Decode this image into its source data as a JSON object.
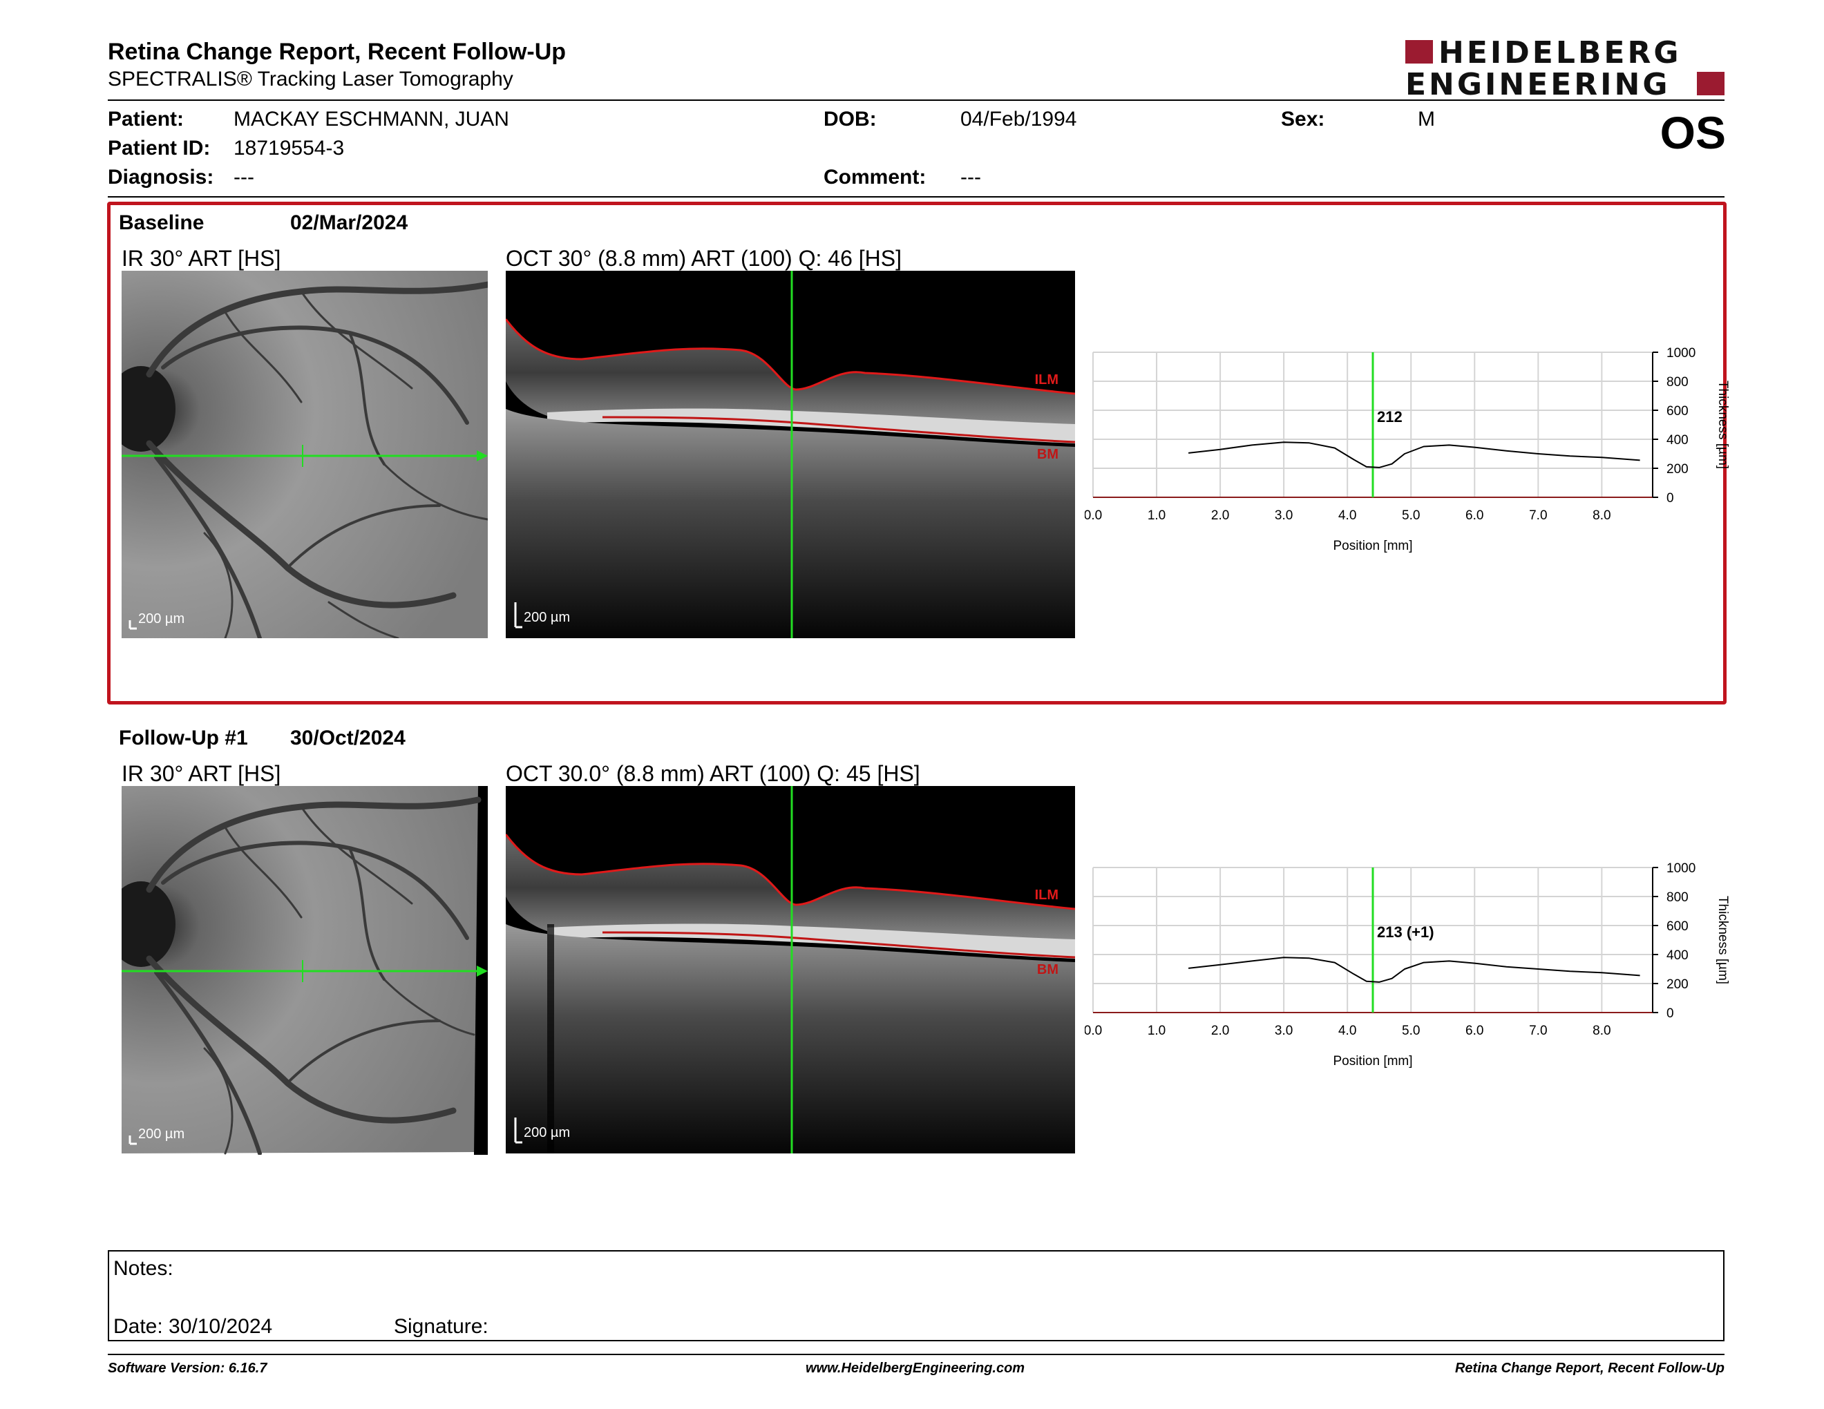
{
  "header": {
    "title": "Retina Change Report, Recent Follow-Up",
    "subtitle": "SPECTRALIS® Tracking Laser Tomography",
    "logo_line1": "HEIDELBERG",
    "logo_line2": "ENGINEERING",
    "eye": "OS"
  },
  "patient": {
    "patient_label": "Patient:",
    "patient_value": "MACKAY ESCHMANN, JUAN",
    "dob_label": "DOB:",
    "dob_value": "04/Feb/1994",
    "sex_label": "Sex:",
    "sex_value": "M",
    "id_label": "Patient ID:",
    "id_value": "18719554-3",
    "diagnosis_label": "Diagnosis:",
    "diagnosis_value": "---",
    "comment_label": "Comment:",
    "comment_value": "---"
  },
  "baseline": {
    "title": "Baseline",
    "date": "02/Mar/2024",
    "ir_label": "IR 30° ART [HS]",
    "oct_label": "OCT 30° (8.8 mm) ART (100) Q: 46 [HS]",
    "scale_ir": "200 µm",
    "scale_oct": "200 µm",
    "ilm_label": "ILM",
    "bm_label": "BM",
    "marker_value": "212"
  },
  "followup": {
    "title": "Follow-Up #1",
    "date": "30/Oct/2024",
    "ir_label": "IR 30° ART [HS]",
    "oct_label": "OCT 30.0° (8.8 mm) ART (100) Q: 45 [HS]",
    "scale_ir": "200 µm",
    "scale_oct": "200 µm",
    "ilm_label": "ILM",
    "bm_label": "BM",
    "marker_value": "213 (+1)"
  },
  "chart_data": [
    {
      "type": "line",
      "xlabel": "Position [mm]",
      "ylabel": "Thickness [µm]",
      "xlim": [
        0,
        8.8
      ],
      "ylim": [
        0,
        1000
      ],
      "x_ticks": [
        "0.0",
        "1.0",
        "2.0",
        "3.0",
        "4.0",
        "5.0",
        "6.0",
        "7.0",
        "8.0"
      ],
      "y_ticks": [
        "0",
        "200",
        "400",
        "600",
        "800",
        "1000"
      ],
      "marker_x": 4.4,
      "marker_label": "212",
      "x": [
        1.5,
        2.0,
        2.5,
        3.0,
        3.4,
        3.8,
        4.1,
        4.3,
        4.5,
        4.7,
        4.9,
        5.2,
        5.6,
        6.0,
        6.5,
        7.0,
        7.5,
        8.0,
        8.6
      ],
      "y": [
        305,
        330,
        360,
        380,
        375,
        340,
        260,
        210,
        205,
        230,
        300,
        350,
        360,
        345,
        320,
        300,
        285,
        275,
        255
      ]
    },
    {
      "type": "line",
      "xlabel": "Position [mm]",
      "ylabel": "Thickness [µm]",
      "xlim": [
        0,
        8.8
      ],
      "ylim": [
        0,
        1000
      ],
      "x_ticks": [
        "0.0",
        "1.0",
        "2.0",
        "3.0",
        "4.0",
        "5.0",
        "6.0",
        "7.0",
        "8.0"
      ],
      "y_ticks": [
        "0",
        "200",
        "400",
        "600",
        "800",
        "1000"
      ],
      "marker_x": 4.4,
      "marker_label": "213 (+1)",
      "x": [
        1.5,
        2.0,
        2.5,
        3.0,
        3.4,
        3.8,
        4.1,
        4.3,
        4.5,
        4.7,
        4.9,
        5.2,
        5.6,
        6.0,
        6.5,
        7.0,
        7.5,
        8.0,
        8.6
      ],
      "y": [
        305,
        330,
        355,
        380,
        375,
        345,
        265,
        215,
        210,
        235,
        300,
        345,
        355,
        340,
        315,
        300,
        285,
        275,
        255
      ]
    }
  ],
  "notes": {
    "notes_label": "Notes:",
    "date_label": "Date: 30/10/2024",
    "signature_label": "Signature:"
  },
  "footer": {
    "left": "Software Version: 6.16.7",
    "center": "www.HeidelbergEngineering.com",
    "right": "Retina Change Report, Recent Follow-Up"
  },
  "colors": {
    "accent_red": "#c0141e",
    "brand": "#9b1b30",
    "marker_green": "#22dd22"
  }
}
